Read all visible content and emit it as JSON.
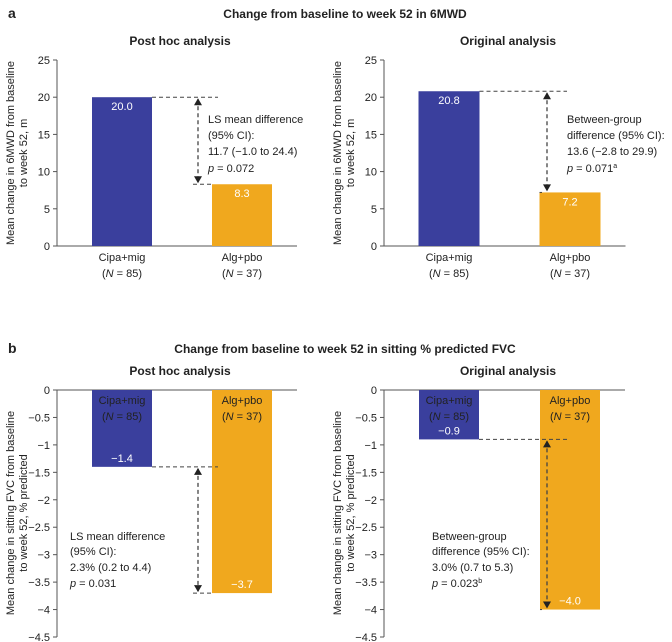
{
  "chart_data": [
    {
      "type": "bar",
      "panel": "a",
      "section_title": "Change from baseline to week 52 in 6MWD",
      "title": "Post hoc analysis",
      "ylabel": [
        "Mean change in 6MWD from baseline",
        "to week 52, m"
      ],
      "ylim": [
        0,
        25
      ],
      "yticks": [
        0,
        5,
        10,
        15,
        20,
        25
      ],
      "ytick_labels": [
        "0",
        "5",
        "10",
        "15",
        "20",
        "25"
      ],
      "categories": [
        {
          "name": "Cipa+mig",
          "n": "N = 85"
        },
        {
          "name": "Alg+pbo",
          "n": "N = 37"
        }
      ],
      "values": [
        20.0,
        8.3
      ],
      "value_labels": [
        "20.0",
        "8.3"
      ],
      "annotation": [
        "LS mean difference",
        "(95% CI):",
        "11.7 (−1.0 to 24.4)",
        "p = 0.072"
      ]
    },
    {
      "type": "bar",
      "panel": "a",
      "title": "Original analysis",
      "ylabel": [
        "Mean change in 6MWD from baseline",
        "to week 52, m"
      ],
      "ylim": [
        0,
        25
      ],
      "yticks": [
        0,
        5,
        10,
        15,
        20,
        25
      ],
      "ytick_labels": [
        "0",
        "5",
        "10",
        "15",
        "20",
        "25"
      ],
      "categories": [
        {
          "name": "Cipa+mig",
          "n": "N = 85"
        },
        {
          "name": "Alg+pbo",
          "n": "N = 37"
        }
      ],
      "values": [
        20.8,
        7.2
      ],
      "value_labels": [
        "20.8",
        "7.2"
      ],
      "annotation": [
        "Between-group",
        "difference (95% CI):",
        "13.6 (−2.8 to 29.9)",
        "p = 0.071",
        "a"
      ]
    },
    {
      "type": "bar",
      "panel": "b",
      "section_title": "Change from baseline to week 52 in sitting % predicted FVC",
      "title": "Post hoc analysis",
      "ylabel": [
        "Mean change in sitting FVC from baseline",
        "to week 52, % predicted"
      ],
      "ylim": [
        -4.5,
        0
      ],
      "yticks": [
        0,
        -0.5,
        -1,
        -1.5,
        -2,
        -2.5,
        -3,
        -3.5,
        -4,
        -4.5
      ],
      "ytick_labels": [
        "0",
        "−0.5",
        "−1",
        "−1.5",
        "−2",
        "−2.5",
        "−3",
        "−3.5",
        "−4",
        "−4.5"
      ],
      "categories": [
        {
          "name": "Cipa+mig",
          "n": "N = 85"
        },
        {
          "name": "Alg+pbo",
          "n": "N = 37"
        }
      ],
      "values": [
        -1.4,
        -3.7
      ],
      "value_labels": [
        "−1.4",
        "−3.7"
      ],
      "annotation": [
        "LS mean difference",
        "(95% CI):",
        "2.3% (0.2 to 4.4)",
        "p = 0.031"
      ]
    },
    {
      "type": "bar",
      "panel": "b",
      "title": "Original analysis",
      "ylabel": [
        "Mean change in sitting FVC from baseline",
        "to week 52, % predicted"
      ],
      "ylim": [
        -4.5,
        0
      ],
      "yticks": [
        0,
        -0.5,
        -1,
        -1.5,
        -2,
        -2.5,
        -3,
        -3.5,
        -4,
        -4.5
      ],
      "ytick_labels": [
        "0",
        "−0.5",
        "−1",
        "−1.5",
        "−2",
        "−2.5",
        "−3",
        "−3.5",
        "−4",
        "−4.5"
      ],
      "categories": [
        {
          "name": "Cipa+mig",
          "n": "N = 85"
        },
        {
          "name": "Alg+pbo",
          "n": "N = 37"
        }
      ],
      "values": [
        -0.9,
        -4.0
      ],
      "value_labels": [
        "−0.9",
        "−4.0"
      ],
      "annotation": [
        "Between-group",
        "difference (95% CI):",
        "3.0% (0.7 to 5.3)",
        "p = 0.023",
        "b"
      ]
    }
  ],
  "colors": {
    "cipa": "#3a3f9d",
    "alg": "#f0a81e",
    "text": "#222222",
    "axis": "#555555"
  },
  "panel_labels": [
    "a",
    "b"
  ]
}
